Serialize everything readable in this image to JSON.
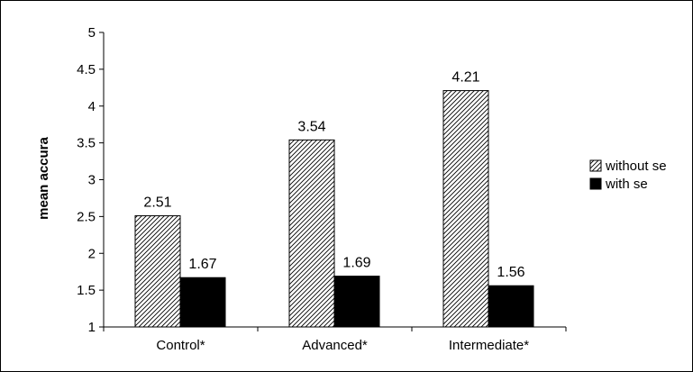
{
  "chart_data": {
    "type": "bar",
    "title": "",
    "xlabel": "",
    "ylabel": "mean accura",
    "ylim": [
      1,
      5
    ],
    "yticks": [
      "1",
      "1.5",
      "2",
      "2.5",
      "3",
      "3.5",
      "4",
      "4.5",
      "5"
    ],
    "categories": [
      "Control*",
      "Advanced*",
      "Intermediate*"
    ],
    "series": [
      {
        "name": "without se",
        "values": [
          2.51,
          3.54,
          4.21
        ],
        "labels": [
          "2.51",
          "3.54",
          "4.21"
        ],
        "pattern": "diagonal-hatch",
        "color": "#000000"
      },
      {
        "name": "with se",
        "values": [
          1.67,
          1.69,
          1.56
        ],
        "labels": [
          "1.67",
          "1.69",
          "1.56"
        ],
        "pattern": "solid",
        "color": "#000000"
      }
    ],
    "legend": {
      "position": "right"
    },
    "grid": false
  }
}
